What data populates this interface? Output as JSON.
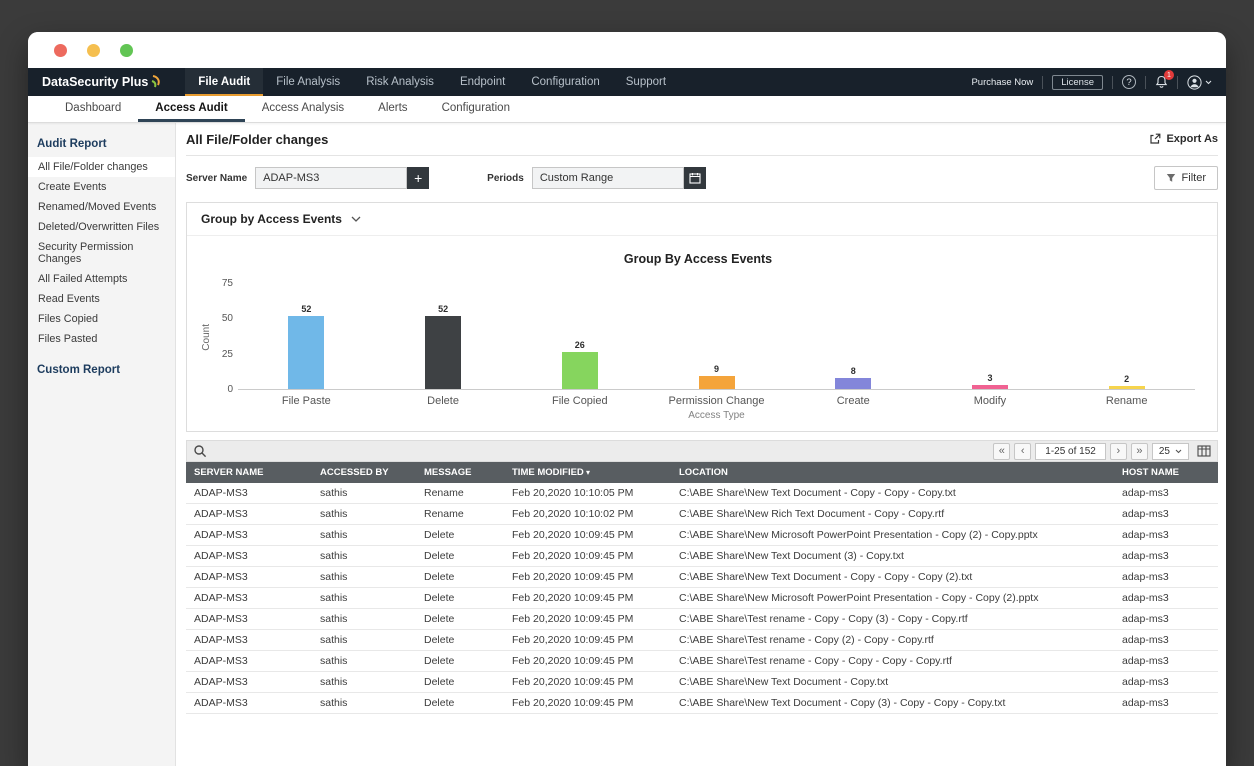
{
  "topnav": {
    "brand": "DataSecurity Plus",
    "items": [
      {
        "label": "File Audit",
        "active": true
      },
      {
        "label": "File Analysis",
        "active": false
      },
      {
        "label": "Risk Analysis",
        "active": false
      },
      {
        "label": "Endpoint",
        "active": false
      },
      {
        "label": "Configuration",
        "active": false
      },
      {
        "label": "Support",
        "active": false
      }
    ],
    "purchase_now": "Purchase Now",
    "license": "License",
    "help": "?",
    "notification_count": "1"
  },
  "subnav": {
    "items": [
      {
        "label": "Dashboard",
        "active": false
      },
      {
        "label": "Access Audit",
        "active": true
      },
      {
        "label": "Access Analysis",
        "active": false
      },
      {
        "label": "Alerts",
        "active": false
      },
      {
        "label": "Configuration",
        "active": false
      }
    ]
  },
  "sidebar": {
    "section_title": "Audit Report",
    "items": [
      {
        "label": "All File/Folder changes",
        "active": true
      },
      {
        "label": "Create Events",
        "active": false
      },
      {
        "label": "Renamed/Moved Events",
        "active": false
      },
      {
        "label": "Deleted/Overwritten Files",
        "active": false
      },
      {
        "label": "Security Permission Changes",
        "active": false
      },
      {
        "label": "All Failed Attempts",
        "active": false
      },
      {
        "label": "Read Events",
        "active": false
      },
      {
        "label": "Files Copied",
        "active": false
      },
      {
        "label": "Files Pasted",
        "active": false
      }
    ],
    "custom_report": "Custom Report"
  },
  "page": {
    "title": "All File/Folder changes",
    "export_label": "Export As"
  },
  "filters": {
    "server_name_label": "Server Name",
    "server_name_value": "ADAP-MS3",
    "add_button": "+",
    "periods_label": "Periods",
    "periods_value": "Custom Range",
    "filter_button": "Filter"
  },
  "chart_panel": {
    "group_by_label": "Group by Access Events"
  },
  "chart_data": {
    "type": "bar",
    "title": "Group By Access Events",
    "categories": [
      "File Paste",
      "Delete",
      "File Copied",
      "Permission Change",
      "Create",
      "Modify",
      "Rename"
    ],
    "values": [
      52,
      52,
      26,
      9,
      8,
      3,
      2
    ],
    "colors": [
      "#70b8e8",
      "#3e4144",
      "#86d55e",
      "#f4a43b",
      "#8386da",
      "#f06292",
      "#f6d44d"
    ],
    "xlabel": "Access Type",
    "ylabel": "Count",
    "ylim": [
      0,
      75
    ],
    "yticks": [
      0,
      25,
      50,
      75
    ],
    "grid": false,
    "legend": false
  },
  "toolbar": {
    "pagination_range": "1-25 of 152",
    "page_size": "25"
  },
  "table": {
    "columns": [
      {
        "label": "SERVER NAME"
      },
      {
        "label": "ACCESSED BY"
      },
      {
        "label": "MESSAGE"
      },
      {
        "label": "TIME MODIFIED",
        "sort": "desc"
      },
      {
        "label": "LOCATION"
      },
      {
        "label": "HOST NAME"
      }
    ],
    "rows": [
      {
        "server": "ADAP-MS3",
        "accessed_by": "sathis",
        "message": "Rename",
        "time": "Feb 20,2020 10:10:05 PM",
        "location": "C:\\ABE Share\\New Text Document - Copy - Copy - Copy.txt",
        "host": "adap-ms3"
      },
      {
        "server": "ADAP-MS3",
        "accessed_by": "sathis",
        "message": "Rename",
        "time": "Feb 20,2020 10:10:02 PM",
        "location": "C:\\ABE Share\\New Rich Text Document - Copy - Copy.rtf",
        "host": "adap-ms3"
      },
      {
        "server": "ADAP-MS3",
        "accessed_by": "sathis",
        "message": "Delete",
        "time": "Feb 20,2020 10:09:45 PM",
        "location": "C:\\ABE Share\\New Microsoft PowerPoint Presentation - Copy (2) - Copy.pptx",
        "host": "adap-ms3"
      },
      {
        "server": "ADAP-MS3",
        "accessed_by": "sathis",
        "message": "Delete",
        "time": "Feb 20,2020 10:09:45 PM",
        "location": "C:\\ABE Share\\New Text Document (3) - Copy.txt",
        "host": "adap-ms3"
      },
      {
        "server": "ADAP-MS3",
        "accessed_by": "sathis",
        "message": "Delete",
        "time": "Feb 20,2020 10:09:45 PM",
        "location": "C:\\ABE Share\\New Text Document - Copy - Copy - Copy (2).txt",
        "host": "adap-ms3"
      },
      {
        "server": "ADAP-MS3",
        "accessed_by": "sathis",
        "message": "Delete",
        "time": "Feb 20,2020 10:09:45 PM",
        "location": "C:\\ABE Share\\New Microsoft PowerPoint Presentation - Copy - Copy (2).pptx",
        "host": "adap-ms3"
      },
      {
        "server": "ADAP-MS3",
        "accessed_by": "sathis",
        "message": "Delete",
        "time": "Feb 20,2020 10:09:45 PM",
        "location": "C:\\ABE Share\\Test rename - Copy - Copy (3) - Copy - Copy.rtf",
        "host": "adap-ms3"
      },
      {
        "server": "ADAP-MS3",
        "accessed_by": "sathis",
        "message": "Delete",
        "time": "Feb 20,2020 10:09:45 PM",
        "location": "C:\\ABE Share\\Test rename - Copy (2) - Copy - Copy.rtf",
        "host": "adap-ms3"
      },
      {
        "server": "ADAP-MS3",
        "accessed_by": "sathis",
        "message": "Delete",
        "time": "Feb 20,2020 10:09:45 PM",
        "location": "C:\\ABE Share\\Test rename - Copy - Copy - Copy - Copy.rtf",
        "host": "adap-ms3"
      },
      {
        "server": "ADAP-MS3",
        "accessed_by": "sathis",
        "message": "Delete",
        "time": "Feb 20,2020 10:09:45 PM",
        "location": "C:\\ABE Share\\New Text Document - Copy.txt",
        "host": "adap-ms3"
      },
      {
        "server": "ADAP-MS3",
        "accessed_by": "sathis",
        "message": "Delete",
        "time": "Feb 20,2020 10:09:45 PM",
        "location": "C:\\ABE Share\\New Text Document - Copy (3) - Copy - Copy - Copy.txt",
        "host": "adap-ms3"
      }
    ]
  }
}
